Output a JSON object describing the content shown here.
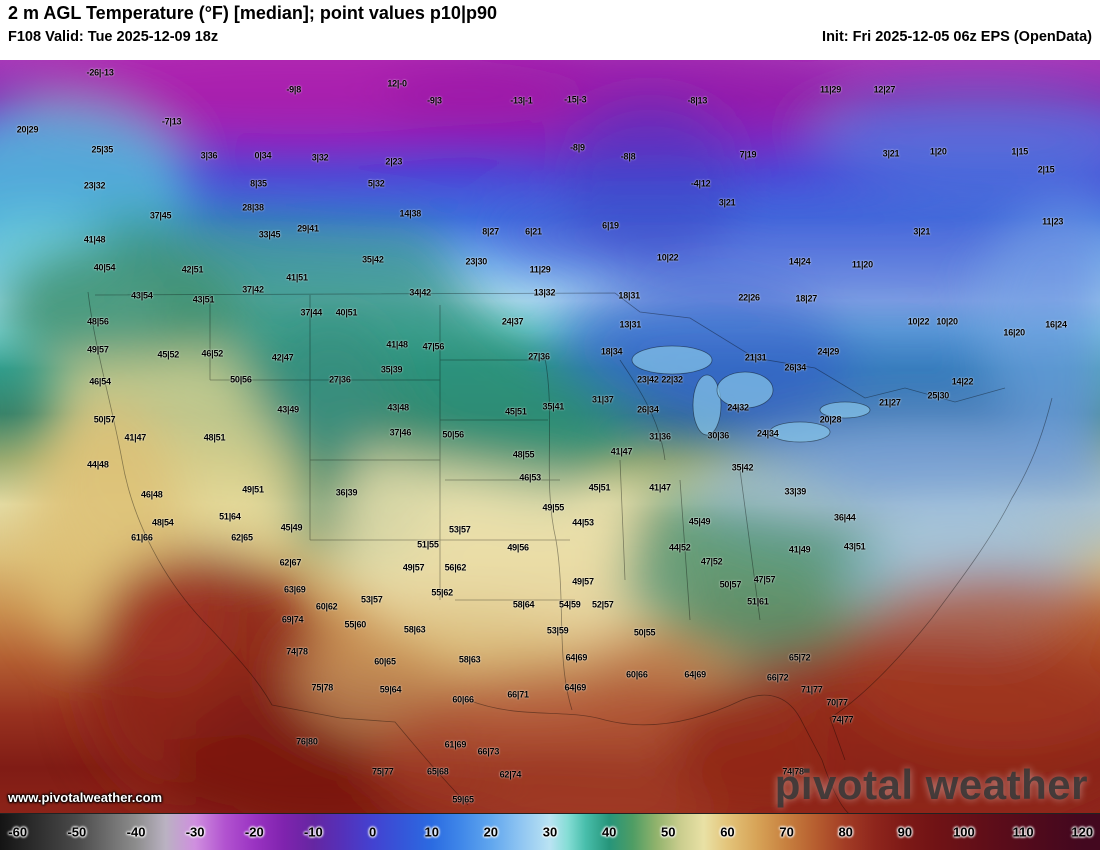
{
  "header": {
    "title": "2 m AGL Temperature (°F) [median]; point values p10|p90",
    "valid": "F108 Valid: Tue 2025-12-09 18z",
    "init": "Init: Fri 2025-12-05 06z EPS (OpenData)"
  },
  "watermark": {
    "url": "www.pivotalweather.com",
    "brand": "pivotal weather"
  },
  "palette": {
    "arctic_magenta": "#a637b8",
    "cold_blue": "#3e6ede",
    "cool_cyan": "#aedcf0",
    "teal_green": "#2f9d8c",
    "mild_cream": "#e4dda6",
    "warm_tan": "#dcc07b",
    "hot_red": "#8c2217"
  },
  "colorbar": {
    "ticks": [
      -60,
      -50,
      -40,
      -30,
      -20,
      -10,
      0,
      10,
      20,
      30,
      40,
      50,
      60,
      70,
      80,
      90,
      100,
      110,
      120
    ],
    "domain_min": -63,
    "domain_max": 123,
    "stops": [
      {
        "v": -63,
        "c": "#141414"
      },
      {
        "v": -50,
        "c": "#4a4a4a"
      },
      {
        "v": -40,
        "c": "#8d8d8d"
      },
      {
        "v": -35,
        "c": "#bab2c2"
      },
      {
        "v": -30,
        "c": "#cf8fdf"
      },
      {
        "v": -25,
        "c": "#b253d0"
      },
      {
        "v": -20,
        "c": "#9a33c2"
      },
      {
        "v": -15,
        "c": "#7f23ae"
      },
      {
        "v": -10,
        "c": "#6526a2"
      },
      {
        "v": -5,
        "c": "#5431ba"
      },
      {
        "v": 0,
        "c": "#4342d1"
      },
      {
        "v": 5,
        "c": "#3556d9"
      },
      {
        "v": 10,
        "c": "#2b6be1"
      },
      {
        "v": 15,
        "c": "#4088e9"
      },
      {
        "v": 20,
        "c": "#60a6ee"
      },
      {
        "v": 25,
        "c": "#8fc5f2"
      },
      {
        "v": 30,
        "c": "#bae3f3"
      },
      {
        "v": 33,
        "c": "#85ddd5"
      },
      {
        "v": 36,
        "c": "#48beab"
      },
      {
        "v": 40,
        "c": "#26957a"
      },
      {
        "v": 44,
        "c": "#4f9d64"
      },
      {
        "v": 48,
        "c": "#91b36c"
      },
      {
        "v": 52,
        "c": "#cacd8e"
      },
      {
        "v": 56,
        "c": "#e9e1a5"
      },
      {
        "v": 60,
        "c": "#e3c47a"
      },
      {
        "v": 65,
        "c": "#d7a357"
      },
      {
        "v": 70,
        "c": "#c7803f"
      },
      {
        "v": 75,
        "c": "#b65d2f"
      },
      {
        "v": 80,
        "c": "#a23c25"
      },
      {
        "v": 85,
        "c": "#8e251c"
      },
      {
        "v": 90,
        "c": "#7d1916"
      },
      {
        "v": 95,
        "c": "#711315"
      },
      {
        "v": 100,
        "c": "#671017"
      },
      {
        "v": 105,
        "c": "#5d0d19"
      },
      {
        "v": 110,
        "c": "#540b1b"
      },
      {
        "v": 115,
        "c": "#4b091d"
      },
      {
        "v": 120,
        "c": "#43081f"
      }
    ]
  },
  "map": {
    "points": [
      {
        "x": 9.1,
        "y": 1.7,
        "v": "-26|-13"
      },
      {
        "x": 26.7,
        "y": 4.0,
        "v": "-9|8"
      },
      {
        "x": 36.1,
        "y": 3.2,
        "v": "12|-0"
      },
      {
        "x": 39.5,
        "y": 5.4,
        "v": "-9|3"
      },
      {
        "x": 47.4,
        "y": 5.4,
        "v": "-13|-1"
      },
      {
        "x": 52.3,
        "y": 5.3,
        "v": "-15|-3"
      },
      {
        "x": 63.4,
        "y": 5.4,
        "v": "-8|13"
      },
      {
        "x": 75.5,
        "y": 4.0,
        "v": "11|29"
      },
      {
        "x": 80.4,
        "y": 4.0,
        "v": "12|27"
      },
      {
        "x": 2.5,
        "y": 9.3,
        "v": "20|29"
      },
      {
        "x": 15.6,
        "y": 8.2,
        "v": "-7|13"
      },
      {
        "x": 9.3,
        "y": 12.0,
        "v": "25|35"
      },
      {
        "x": 19.0,
        "y": 12.7,
        "v": "3|36"
      },
      {
        "x": 23.9,
        "y": 12.7,
        "v": "0|34"
      },
      {
        "x": 29.1,
        "y": 13.0,
        "v": "3|32"
      },
      {
        "x": 35.8,
        "y": 13.5,
        "v": "2|23"
      },
      {
        "x": 52.5,
        "y": 11.7,
        "v": "-8|9"
      },
      {
        "x": 57.1,
        "y": 12.9,
        "v": "-8|8"
      },
      {
        "x": 68.0,
        "y": 12.6,
        "v": "7|19"
      },
      {
        "x": 81.0,
        "y": 12.5,
        "v": "3|21"
      },
      {
        "x": 85.3,
        "y": 12.2,
        "v": "1|20"
      },
      {
        "x": 92.7,
        "y": 12.2,
        "v": "1|15"
      },
      {
        "x": 95.1,
        "y": 14.6,
        "v": "2|15"
      },
      {
        "x": 8.6,
        "y": 16.7,
        "v": "23|32"
      },
      {
        "x": 23.5,
        "y": 16.5,
        "v": "8|35"
      },
      {
        "x": 34.2,
        "y": 16.5,
        "v": "5|32"
      },
      {
        "x": 63.7,
        "y": 16.5,
        "v": "-4|12"
      },
      {
        "x": 14.6,
        "y": 20.7,
        "v": "37|45"
      },
      {
        "x": 23.0,
        "y": 19.7,
        "v": "28|38"
      },
      {
        "x": 37.3,
        "y": 20.5,
        "v": "14|38"
      },
      {
        "x": 44.6,
        "y": 22.8,
        "v": "8|27"
      },
      {
        "x": 48.5,
        "y": 22.8,
        "v": "6|21"
      },
      {
        "x": 55.5,
        "y": 22.0,
        "v": "6|19"
      },
      {
        "x": 66.1,
        "y": 19.0,
        "v": "3|21"
      },
      {
        "x": 83.8,
        "y": 22.8,
        "v": "3|21"
      },
      {
        "x": 95.7,
        "y": 21.5,
        "v": "11|23"
      },
      {
        "x": 8.6,
        "y": 23.9,
        "v": "41|48"
      },
      {
        "x": 24.5,
        "y": 23.2,
        "v": "33|45"
      },
      {
        "x": 28.0,
        "y": 22.4,
        "v": "29|41"
      },
      {
        "x": 33.9,
        "y": 26.6,
        "v": "35|42"
      },
      {
        "x": 43.3,
        "y": 26.8,
        "v": "23|30"
      },
      {
        "x": 49.1,
        "y": 27.9,
        "v": "11|29"
      },
      {
        "x": 60.7,
        "y": 26.3,
        "v": "10|22"
      },
      {
        "x": 72.7,
        "y": 26.8,
        "v": "14|24"
      },
      {
        "x": 78.4,
        "y": 27.2,
        "v": "11|20"
      },
      {
        "x": 9.5,
        "y": 27.6,
        "v": "40|54"
      },
      {
        "x": 17.5,
        "y": 27.9,
        "v": "42|51"
      },
      {
        "x": 12.9,
        "y": 31.3,
        "v": "43|54"
      },
      {
        "x": 18.5,
        "y": 31.9,
        "v": "43|51"
      },
      {
        "x": 23.0,
        "y": 30.5,
        "v": "37|42"
      },
      {
        "x": 27.0,
        "y": 29.0,
        "v": "41|51"
      },
      {
        "x": 38.2,
        "y": 30.9,
        "v": "34|42"
      },
      {
        "x": 49.5,
        "y": 30.9,
        "v": "13|32"
      },
      {
        "x": 57.2,
        "y": 31.3,
        "v": "18|31"
      },
      {
        "x": 68.1,
        "y": 31.6,
        "v": "22|26"
      },
      {
        "x": 73.3,
        "y": 31.7,
        "v": "18|27"
      },
      {
        "x": 83.5,
        "y": 34.8,
        "v": "10|22"
      },
      {
        "x": 86.1,
        "y": 34.8,
        "v": "10|20"
      },
      {
        "x": 92.2,
        "y": 36.3,
        "v": "16|20"
      },
      {
        "x": 96.0,
        "y": 35.2,
        "v": "16|24"
      },
      {
        "x": 8.9,
        "y": 34.8,
        "v": "48|56"
      },
      {
        "x": 28.3,
        "y": 33.6,
        "v": "37|44"
      },
      {
        "x": 31.5,
        "y": 33.6,
        "v": "40|51"
      },
      {
        "x": 46.6,
        "y": 34.8,
        "v": "24|37"
      },
      {
        "x": 57.3,
        "y": 35.2,
        "v": "13|31"
      },
      {
        "x": 8.9,
        "y": 38.5,
        "v": "49|57"
      },
      {
        "x": 15.3,
        "y": 39.2,
        "v": "45|52"
      },
      {
        "x": 19.3,
        "y": 39.0,
        "v": "46|52"
      },
      {
        "x": 25.7,
        "y": 39.6,
        "v": "42|47"
      },
      {
        "x": 36.1,
        "y": 37.8,
        "v": "41|48"
      },
      {
        "x": 39.4,
        "y": 38.1,
        "v": "47|56"
      },
      {
        "x": 30.9,
        "y": 42.5,
        "v": "27|36"
      },
      {
        "x": 35.6,
        "y": 41.2,
        "v": "35|39"
      },
      {
        "x": 49.0,
        "y": 39.4,
        "v": "27|36"
      },
      {
        "x": 55.6,
        "y": 38.8,
        "v": "18|34"
      },
      {
        "x": 21.9,
        "y": 42.5,
        "v": "50|56"
      },
      {
        "x": 9.1,
        "y": 42.8,
        "v": "46|54"
      },
      {
        "x": 58.9,
        "y": 42.5,
        "v": "23|42"
      },
      {
        "x": 61.1,
        "y": 42.5,
        "v": "22|32"
      },
      {
        "x": 68.7,
        "y": 39.6,
        "v": "21|31"
      },
      {
        "x": 72.3,
        "y": 40.9,
        "v": "26|34"
      },
      {
        "x": 75.3,
        "y": 38.8,
        "v": "24|29"
      },
      {
        "x": 80.9,
        "y": 45.6,
        "v": "21|27"
      },
      {
        "x": 85.3,
        "y": 44.6,
        "v": "25|30"
      },
      {
        "x": 87.5,
        "y": 42.8,
        "v": "14|22"
      },
      {
        "x": 26.2,
        "y": 46.5,
        "v": "43|49"
      },
      {
        "x": 36.2,
        "y": 46.2,
        "v": "43|48"
      },
      {
        "x": 36.4,
        "y": 49.5,
        "v": "37|46"
      },
      {
        "x": 46.9,
        "y": 46.7,
        "v": "45|51"
      },
      {
        "x": 50.3,
        "y": 46.1,
        "v": "35|41"
      },
      {
        "x": 54.8,
        "y": 45.2,
        "v": "31|37"
      },
      {
        "x": 58.9,
        "y": 46.5,
        "v": "26|34"
      },
      {
        "x": 67.1,
        "y": 46.2,
        "v": "24|32"
      },
      {
        "x": 60.0,
        "y": 50.1,
        "v": "31|36"
      },
      {
        "x": 65.3,
        "y": 49.9,
        "v": "30|36"
      },
      {
        "x": 69.8,
        "y": 49.7,
        "v": "24|34"
      },
      {
        "x": 75.5,
        "y": 47.8,
        "v": "20|28"
      },
      {
        "x": 9.5,
        "y": 47.8,
        "v": "50|57"
      },
      {
        "x": 12.3,
        "y": 50.2,
        "v": "41|47"
      },
      {
        "x": 19.5,
        "y": 50.2,
        "v": "48|51"
      },
      {
        "x": 41.2,
        "y": 49.8,
        "v": "50|56"
      },
      {
        "x": 47.6,
        "y": 52.5,
        "v": "48|55"
      },
      {
        "x": 8.9,
        "y": 53.8,
        "v": "44|48"
      },
      {
        "x": 56.5,
        "y": 52.1,
        "v": "41|47"
      },
      {
        "x": 60.0,
        "y": 56.8,
        "v": "41|47"
      },
      {
        "x": 48.2,
        "y": 55.5,
        "v": "46|53"
      },
      {
        "x": 54.5,
        "y": 56.8,
        "v": "45|51"
      },
      {
        "x": 67.5,
        "y": 54.2,
        "v": "35|42"
      },
      {
        "x": 72.3,
        "y": 57.4,
        "v": "33|39"
      },
      {
        "x": 13.8,
        "y": 57.8,
        "v": "46|48"
      },
      {
        "x": 23.0,
        "y": 57.1,
        "v": "49|51"
      },
      {
        "x": 31.5,
        "y": 57.5,
        "v": "36|39"
      },
      {
        "x": 50.3,
        "y": 59.5,
        "v": "49|55"
      },
      {
        "x": 53.0,
        "y": 61.5,
        "v": "44|53"
      },
      {
        "x": 14.8,
        "y": 61.5,
        "v": "48|54"
      },
      {
        "x": 26.5,
        "y": 62.2,
        "v": "45|49"
      },
      {
        "x": 12.9,
        "y": 63.5,
        "v": "61|66"
      },
      {
        "x": 22.0,
        "y": 63.5,
        "v": "62|65"
      },
      {
        "x": 20.9,
        "y": 60.7,
        "v": "51|64"
      },
      {
        "x": 63.6,
        "y": 61.4,
        "v": "45|49"
      },
      {
        "x": 72.7,
        "y": 65.1,
        "v": "41|49"
      },
      {
        "x": 77.7,
        "y": 64.7,
        "v": "43|51"
      },
      {
        "x": 76.8,
        "y": 60.8,
        "v": "36|44"
      },
      {
        "x": 61.8,
        "y": 64.8,
        "v": "44|52"
      },
      {
        "x": 38.9,
        "y": 64.4,
        "v": "51|55"
      },
      {
        "x": 41.8,
        "y": 62.4,
        "v": "53|57"
      },
      {
        "x": 47.1,
        "y": 64.8,
        "v": "49|56"
      },
      {
        "x": 26.4,
        "y": 66.8,
        "v": "62|67"
      },
      {
        "x": 37.6,
        "y": 67.5,
        "v": "49|57"
      },
      {
        "x": 41.4,
        "y": 67.5,
        "v": "56|62"
      },
      {
        "x": 64.7,
        "y": 66.7,
        "v": "47|52"
      },
      {
        "x": 69.5,
        "y": 69.1,
        "v": "47|57"
      },
      {
        "x": 66.4,
        "y": 69.7,
        "v": "50|57"
      },
      {
        "x": 53.0,
        "y": 69.3,
        "v": "49|57"
      },
      {
        "x": 51.8,
        "y": 72.4,
        "v": "54|59"
      },
      {
        "x": 54.8,
        "y": 72.4,
        "v": "52|57"
      },
      {
        "x": 68.9,
        "y": 72.0,
        "v": "51|61"
      },
      {
        "x": 26.8,
        "y": 70.4,
        "v": "63|69"
      },
      {
        "x": 29.7,
        "y": 72.6,
        "v": "60|62"
      },
      {
        "x": 33.8,
        "y": 71.7,
        "v": "53|57"
      },
      {
        "x": 40.2,
        "y": 70.8,
        "v": "55|62"
      },
      {
        "x": 47.6,
        "y": 72.4,
        "v": "58|64"
      },
      {
        "x": 26.6,
        "y": 74.4,
        "v": "69|74"
      },
      {
        "x": 32.3,
        "y": 75.0,
        "v": "55|60"
      },
      {
        "x": 37.7,
        "y": 75.7,
        "v": "58|63"
      },
      {
        "x": 50.7,
        "y": 75.8,
        "v": "53|59"
      },
      {
        "x": 58.6,
        "y": 76.1,
        "v": "50|55"
      },
      {
        "x": 27.0,
        "y": 78.6,
        "v": "74|78"
      },
      {
        "x": 35.0,
        "y": 80.0,
        "v": "60|65"
      },
      {
        "x": 42.7,
        "y": 79.7,
        "v": "58|63"
      },
      {
        "x": 52.4,
        "y": 79.4,
        "v": "64|69"
      },
      {
        "x": 57.9,
        "y": 81.7,
        "v": "60|66"
      },
      {
        "x": 63.2,
        "y": 81.7,
        "v": "64|69"
      },
      {
        "x": 72.7,
        "y": 79.4,
        "v": "65|72"
      },
      {
        "x": 29.3,
        "y": 83.4,
        "v": "75|78"
      },
      {
        "x": 35.5,
        "y": 83.7,
        "v": "59|64"
      },
      {
        "x": 42.1,
        "y": 85.0,
        "v": "60|66"
      },
      {
        "x": 47.1,
        "y": 84.3,
        "v": "66|71"
      },
      {
        "x": 52.3,
        "y": 83.4,
        "v": "64|69"
      },
      {
        "x": 70.7,
        "y": 82.1,
        "v": "66|72"
      },
      {
        "x": 73.8,
        "y": 83.7,
        "v": "71|77"
      },
      {
        "x": 76.1,
        "y": 85.4,
        "v": "70|77"
      },
      {
        "x": 76.6,
        "y": 87.6,
        "v": "74|77"
      },
      {
        "x": 27.9,
        "y": 90.6,
        "v": "76|80"
      },
      {
        "x": 34.8,
        "y": 94.6,
        "v": "75|77"
      },
      {
        "x": 39.8,
        "y": 94.6,
        "v": "65|68"
      },
      {
        "x": 46.4,
        "y": 95.0,
        "v": "62|74"
      },
      {
        "x": 44.4,
        "y": 91.9,
        "v": "66|73"
      },
      {
        "x": 41.4,
        "y": 91.0,
        "v": "61|69"
      },
      {
        "x": 72.1,
        "y": 94.6,
        "v": "74|78"
      },
      {
        "x": 42.1,
        "y": 98.3,
        "v": "59|65"
      }
    ]
  }
}
